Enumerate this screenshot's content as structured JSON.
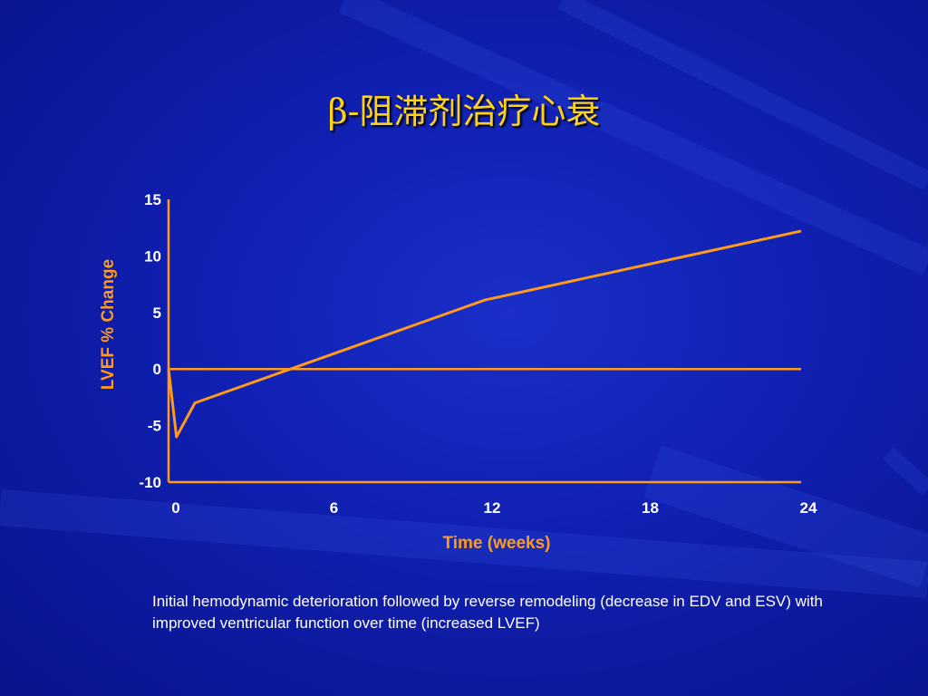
{
  "slide": {
    "title": "β-阻滞剂治疗心衰",
    "caption": "Initial hemodynamic deterioration followed by reverse remodeling (decrease in EDV and ESV) with improved ventricular function over time (increased LVEF)"
  },
  "colors": {
    "background": "#0f1fb0",
    "title": "#ffd21a",
    "line": "#ff9a1a",
    "axis_label": "#ff9a1a",
    "tick": "#ffffff"
  },
  "chart_data": {
    "type": "line",
    "title": "",
    "xlabel": "Time (weeks)",
    "ylabel": "LVEF % Change",
    "xlim": [
      0,
      24
    ],
    "ylim": [
      -10,
      15
    ],
    "xticks": [
      0,
      6,
      12,
      18,
      24
    ],
    "yticks": [
      -10,
      -5,
      0,
      5,
      10,
      15
    ],
    "grid": false,
    "legend": "none",
    "reference_lines": [
      0
    ],
    "series": [
      {
        "x": [
          0,
          0.3,
          1,
          12,
          24
        ],
        "y": [
          0,
          -6,
          -3,
          6.1,
          12.2
        ]
      }
    ]
  }
}
